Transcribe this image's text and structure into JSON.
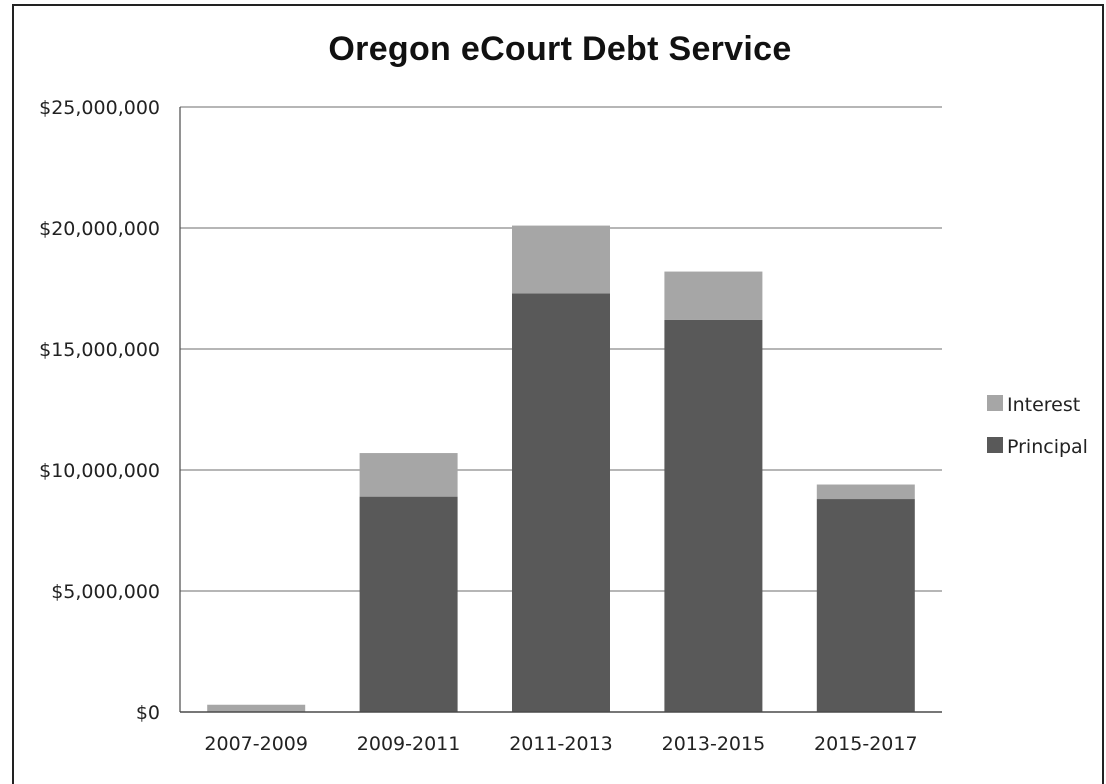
{
  "chart_data": {
    "type": "bar",
    "stacked": true,
    "title": "Oregon eCourt Debt Service",
    "xlabel": "",
    "ylabel": "",
    "categories": [
      "2007-2009",
      "2009-2011",
      "2011-2013",
      "2013-2015",
      "2015-2017"
    ],
    "series": [
      {
        "name": "Principal",
        "color": "#595959",
        "values": [
          0,
          8900000,
          17300000,
          16200000,
          8800000
        ]
      },
      {
        "name": "Interest",
        "color": "#a6a6a6",
        "values": [
          300000,
          1800000,
          2800000,
          2000000,
          600000
        ]
      }
    ],
    "ylim": [
      0,
      25000000
    ],
    "yticks": [
      "$0",
      "$5,000,000",
      "$10,000,000",
      "$15,000,000",
      "$20,000,000",
      "$25,000,000"
    ],
    "grid": true,
    "legend": "right",
    "legend_order": [
      "Interest",
      "Principal"
    ]
  }
}
